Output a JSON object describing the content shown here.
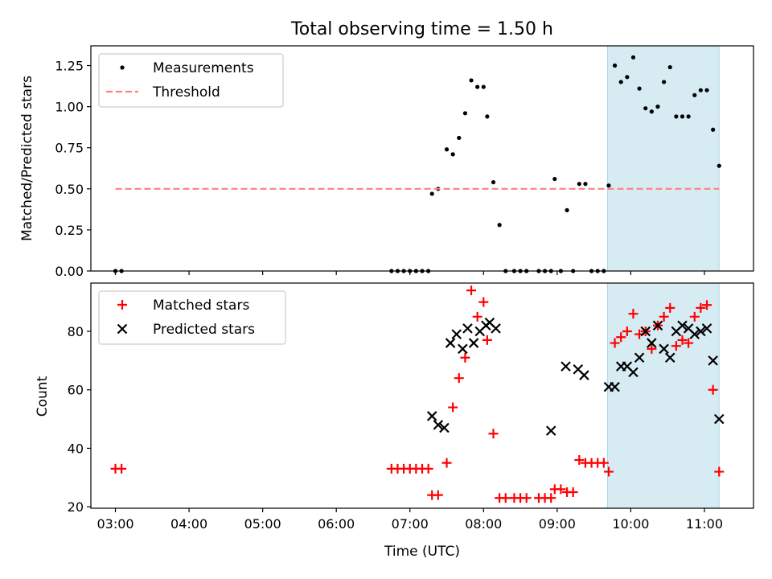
{
  "chart_data": [
    {
      "type": "scatter",
      "title": "Total observing time = 1.50 h",
      "ylabel": "Matched/Predicted stars",
      "xlim": [
        "02:40",
        "11:40"
      ],
      "ylim": [
        0,
        1.37
      ],
      "yticks": [
        0.0,
        0.25,
        0.5,
        0.75,
        1.0,
        1.25
      ],
      "ytick_labels": [
        "0.00",
        "0.25",
        "0.50",
        "0.75",
        "1.00",
        "1.25"
      ],
      "grid": false,
      "legend_position": "top-left",
      "highlight_span": [
        "09:41",
        "11:12"
      ],
      "series": [
        {
          "name": "Measurements",
          "marker": "dot",
          "color": "#000000",
          "points": [
            [
              "03:00",
              0
            ],
            [
              "03:05",
              0
            ],
            [
              "06:45",
              0
            ],
            [
              "06:50",
              0
            ],
            [
              "06:55",
              0
            ],
            [
              "07:00",
              0
            ],
            [
              "07:05",
              0
            ],
            [
              "07:10",
              0
            ],
            [
              "07:15",
              0
            ],
            [
              "07:18",
              0.47
            ],
            [
              "07:23",
              0.5
            ],
            [
              "07:30",
              0.74
            ],
            [
              "07:35",
              0.71
            ],
            [
              "07:40",
              0.81
            ],
            [
              "07:45",
              0.96
            ],
            [
              "07:50",
              1.16
            ],
            [
              "07:55",
              1.12
            ],
            [
              "08:00",
              1.12
            ],
            [
              "08:03",
              0.94
            ],
            [
              "08:08",
              0.54
            ],
            [
              "08:13",
              0.28
            ],
            [
              "08:18",
              0
            ],
            [
              "08:25",
              0
            ],
            [
              "08:30",
              0
            ],
            [
              "08:35",
              0
            ],
            [
              "08:45",
              0
            ],
            [
              "08:50",
              0
            ],
            [
              "08:55",
              0
            ],
            [
              "08:58",
              0.56
            ],
            [
              "09:03",
              0
            ],
            [
              "09:08",
              0.37
            ],
            [
              "09:13",
              0
            ],
            [
              "09:18",
              0.53
            ],
            [
              "09:23",
              0.53
            ],
            [
              "09:28",
              0
            ],
            [
              "09:33",
              0
            ],
            [
              "09:38",
              0
            ],
            [
              "09:42",
              0.52
            ],
            [
              "09:47",
              1.25
            ],
            [
              "09:52",
              1.15
            ],
            [
              "09:57",
              1.18
            ],
            [
              "10:02",
              1.3
            ],
            [
              "10:07",
              1.11
            ],
            [
              "10:12",
              0.99
            ],
            [
              "10:17",
              0.97
            ],
            [
              "10:22",
              1.0
            ],
            [
              "10:27",
              1.15
            ],
            [
              "10:32",
              1.24
            ],
            [
              "10:37",
              0.94
            ],
            [
              "10:42",
              0.94
            ],
            [
              "10:47",
              0.94
            ],
            [
              "10:52",
              1.07
            ],
            [
              "10:57",
              1.1
            ],
            [
              "11:02",
              1.1
            ],
            [
              "11:07",
              0.86
            ],
            [
              "11:12",
              0.64
            ]
          ]
        },
        {
          "name": "Threshold",
          "marker": "dashed-line",
          "color": "#ff8080",
          "points": [
            [
              "03:00",
              0.5
            ],
            [
              "11:12",
              0.5
            ]
          ]
        }
      ]
    },
    {
      "type": "scatter",
      "xlabel": "Time (UTC)",
      "ylabel": "Count",
      "xlim": [
        "02:40",
        "11:40"
      ],
      "ylim": [
        19.5,
        96.5
      ],
      "xticks": [
        "03:00",
        "04:00",
        "05:00",
        "06:00",
        "07:00",
        "08:00",
        "09:00",
        "10:00",
        "11:00"
      ],
      "yticks": [
        20,
        40,
        60,
        80
      ],
      "ytick_labels": [
        "20",
        "40",
        "60",
        "80"
      ],
      "grid": false,
      "legend_position": "top-left",
      "highlight_span": [
        "09:41",
        "11:12"
      ],
      "series": [
        {
          "name": "Matched stars",
          "marker": "plus",
          "color": "#ff0000",
          "points": [
            [
              "03:00",
              33
            ],
            [
              "03:05",
              33
            ],
            [
              "06:45",
              33
            ],
            [
              "06:50",
              33
            ],
            [
              "06:55",
              33
            ],
            [
              "07:00",
              33
            ],
            [
              "07:05",
              33
            ],
            [
              "07:10",
              33
            ],
            [
              "07:15",
              33
            ],
            [
              "07:18",
              24
            ],
            [
              "07:23",
              24
            ],
            [
              "07:30",
              35
            ],
            [
              "07:35",
              54
            ],
            [
              "07:40",
              64
            ],
            [
              "07:45",
              71
            ],
            [
              "07:50",
              94
            ],
            [
              "07:55",
              85
            ],
            [
              "08:00",
              90
            ],
            [
              "08:03",
              77
            ],
            [
              "08:08",
              45
            ],
            [
              "08:13",
              23
            ],
            [
              "08:18",
              23
            ],
            [
              "08:25",
              23
            ],
            [
              "08:30",
              23
            ],
            [
              "08:35",
              23
            ],
            [
              "08:45",
              23
            ],
            [
              "08:50",
              23
            ],
            [
              "08:55",
              23
            ],
            [
              "08:58",
              26
            ],
            [
              "09:03",
              26
            ],
            [
              "09:08",
              25
            ],
            [
              "09:13",
              25
            ],
            [
              "09:18",
              36
            ],
            [
              "09:23",
              35
            ],
            [
              "09:28",
              35
            ],
            [
              "09:33",
              35
            ],
            [
              "09:38",
              35
            ],
            [
              "09:42",
              32
            ],
            [
              "09:47",
              76
            ],
            [
              "09:52",
              78
            ],
            [
              "09:57",
              80
            ],
            [
              "10:02",
              86
            ],
            [
              "10:07",
              79
            ],
            [
              "10:12",
              80
            ],
            [
              "10:17",
              74
            ],
            [
              "10:22",
              82
            ],
            [
              "10:27",
              85
            ],
            [
              "10:32",
              88
            ],
            [
              "10:37",
              75
            ],
            [
              "10:42",
              77
            ],
            [
              "10:47",
              76
            ],
            [
              "10:52",
              85
            ],
            [
              "10:57",
              88
            ],
            [
              "11:02",
              89
            ],
            [
              "11:07",
              60
            ],
            [
              "11:12",
              32
            ]
          ]
        },
        {
          "name": "Predicted stars",
          "marker": "x",
          "color": "#000000",
          "points": [
            [
              "07:18",
              51
            ],
            [
              "07:23",
              48
            ],
            [
              "07:28",
              47
            ],
            [
              "07:33",
              76
            ],
            [
              "07:38",
              79
            ],
            [
              "07:43",
              74
            ],
            [
              "07:47",
              81
            ],
            [
              "07:52",
              76
            ],
            [
              "07:57",
              80
            ],
            [
              "08:02",
              82
            ],
            [
              "08:05",
              83
            ],
            [
              "08:10",
              81
            ],
            [
              "08:55",
              46
            ],
            [
              "09:07",
              68
            ],
            [
              "09:17",
              67
            ],
            [
              "09:22",
              65
            ],
            [
              "09:42",
              61
            ],
            [
              "09:47",
              61
            ],
            [
              "09:52",
              68
            ],
            [
              "09:57",
              68
            ],
            [
              "10:02",
              66
            ],
            [
              "10:07",
              71
            ],
            [
              "10:12",
              80
            ],
            [
              "10:17",
              76
            ],
            [
              "10:22",
              82
            ],
            [
              "10:27",
              74
            ],
            [
              "10:32",
              71
            ],
            [
              "10:37",
              80
            ],
            [
              "10:42",
              82
            ],
            [
              "10:47",
              81
            ],
            [
              "10:52",
              79
            ],
            [
              "10:57",
              80
            ],
            [
              "11:02",
              81
            ],
            [
              "11:07",
              70
            ],
            [
              "11:12",
              50
            ]
          ]
        }
      ]
    }
  ]
}
